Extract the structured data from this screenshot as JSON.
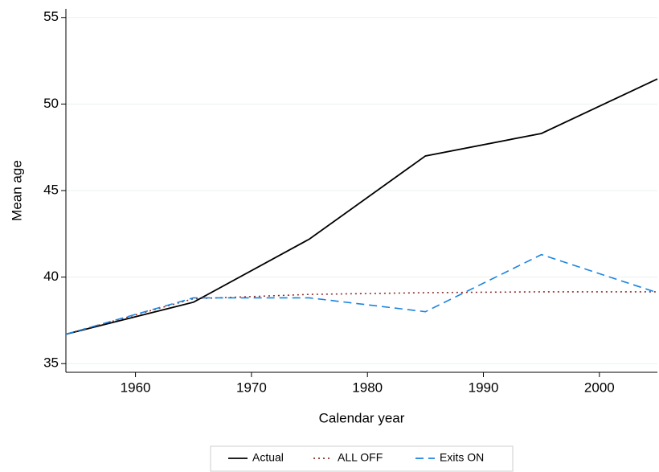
{
  "chart_data": {
    "type": "line",
    "x_label": "Calendar year",
    "y_label": "Mean age",
    "x": [
      1954,
      1965,
      1975,
      1985,
      1995,
      2005
    ],
    "series": [
      {
        "name": "Actual",
        "color": "#000000",
        "linestyle": "solid",
        "values": [
          36.7,
          38.55,
          42.2,
          47.0,
          48.3,
          51.45
        ]
      },
      {
        "name": "ALL OFF",
        "color": "#8b2e2e",
        "linestyle": "dotted",
        "values": [
          36.7,
          38.75,
          39.0,
          39.1,
          39.15,
          39.15
        ]
      },
      {
        "name": "Exits ON",
        "color": "#1a84e0",
        "linestyle": "dashed",
        "values": [
          36.7,
          38.8,
          38.8,
          38.0,
          41.3,
          39.1
        ]
      }
    ],
    "xlim": [
      1954,
      2005
    ],
    "xticks": [
      1960,
      1970,
      1980,
      1990,
      2000
    ],
    "ylim": [
      34.5,
      55.5
    ],
    "yticks": [
      35,
      40,
      45,
      50,
      55
    ],
    "grid": true,
    "legend": "bottom"
  }
}
